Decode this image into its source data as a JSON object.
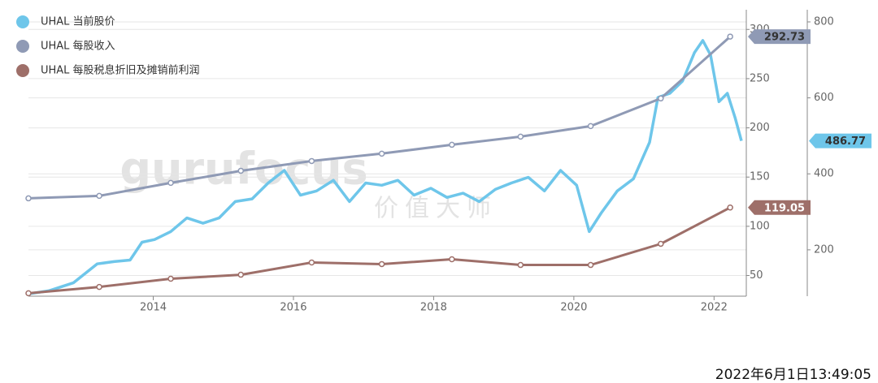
{
  "chart_data": {
    "type": "line",
    "xlim": [
      2012.22,
      2022.46
    ],
    "xticks": [
      2014,
      2016,
      2018,
      2020,
      2022
    ],
    "ylim": [
      29,
      320
    ],
    "yticks": [
      50,
      100,
      150,
      200,
      250,
      300
    ],
    "y2lim": [
      78,
      832
    ],
    "y2ticks": [
      200,
      400,
      600,
      800
    ],
    "grid": true,
    "series": [
      {
        "name": "UHAL 当前股价",
        "color": "#6ec6ea",
        "axis": "y2",
        "x": [
          2012.22,
          2012.51,
          2012.86,
          2013.2,
          2013.44,
          2013.67,
          2013.84,
          2014.02,
          2014.25,
          2014.48,
          2014.71,
          2014.94,
          2015.17,
          2015.41,
          2015.64,
          2015.87,
          2016.1,
          2016.33,
          2016.57,
          2016.8,
          2017.03,
          2017.26,
          2017.49,
          2017.72,
          2017.96,
          2018.19,
          2018.42,
          2018.65,
          2018.88,
          2019.11,
          2019.35,
          2019.58,
          2019.81,
          2020.04,
          2020.22,
          2020.39,
          2020.62,
          2020.85,
          2021.08,
          2021.2,
          2021.37,
          2021.55,
          2021.72,
          2021.84,
          2021.95,
          2022.07,
          2022.19,
          2022.3,
          2022.39
        ],
        "values": [
          84,
          92,
          113,
          163,
          169,
          173,
          220,
          227,
          248,
          284,
          270,
          284,
          327,
          334,
          376,
          409,
          344,
          355,
          383,
          327,
          376,
          370,
          383,
          344,
          362,
          338,
          349,
          327,
          359,
          376,
          391,
          355,
          409,
          370,
          248,
          297,
          355,
          387,
          483,
          601,
          612,
          644,
          719,
          751,
          713,
          590,
          612,
          548,
          486.77
        ]
      },
      {
        "name": "UHAL 每股收入",
        "color": "#8f9ab5",
        "x": [
          2012.22,
          2013.23,
          2014.25,
          2015.25,
          2016.26,
          2017.26,
          2018.26,
          2019.24,
          2020.24,
          2021.24,
          2022.23
        ],
        "values": [
          128.4,
          130.9,
          144.1,
          156.4,
          166.3,
          173.8,
          182.8,
          191.1,
          201.8,
          229.9,
          292.73
        ]
      },
      {
        "name": "UHAL 每股税息折旧及摊销前利润",
        "color": "#9e6f69",
        "x": [
          2012.22,
          2013.23,
          2014.25,
          2015.25,
          2016.26,
          2017.26,
          2018.26,
          2019.24,
          2020.24,
          2021.24,
          2022.23
        ],
        "values": [
          32,
          38.4,
          46.7,
          50.8,
          63.2,
          61.6,
          66.5,
          60.7,
          60.7,
          82.2,
          119.05
        ]
      }
    ],
    "watermark": "gurufocus",
    "watermark_subtitle": "价值大师",
    "timestamp": "2022年6月1日13:49:05"
  }
}
